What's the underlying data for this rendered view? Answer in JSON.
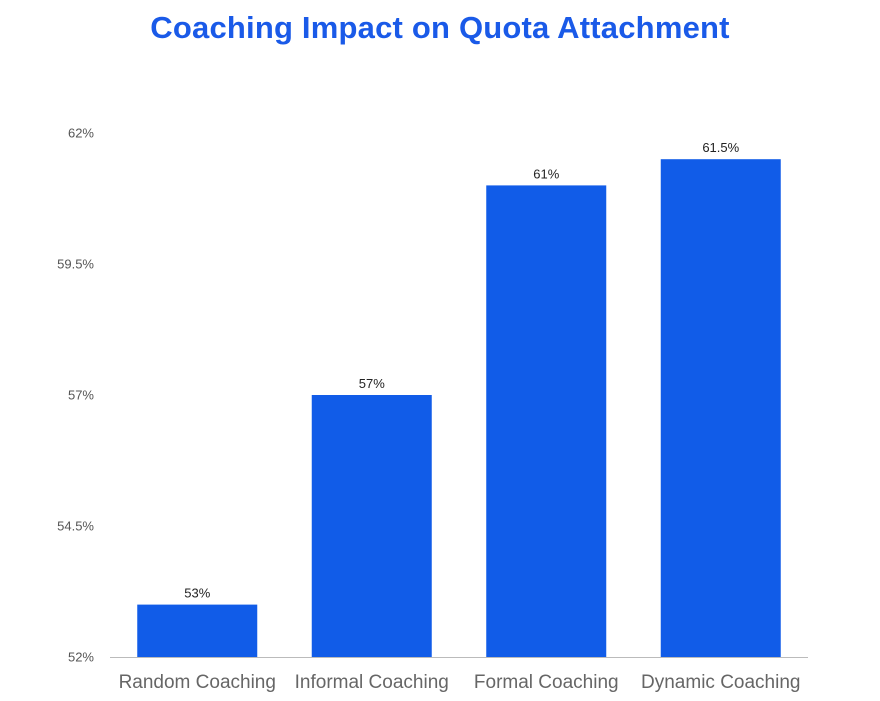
{
  "chart_data": {
    "type": "bar",
    "title": "Coaching Impact on Quota Attachment",
    "xlabel": "",
    "ylabel": "",
    "categories": [
      "Random Coaching",
      "Informal Coaching",
      "Formal Coaching",
      "Dynamic Coaching"
    ],
    "values": [
      53,
      57,
      61,
      61.5
    ],
    "value_labels": [
      "53%",
      "57%",
      "61%",
      "61.5%"
    ],
    "ylim": [
      52,
      62
    ],
    "yticks": [
      52,
      54.5,
      57,
      59.5,
      62
    ],
    "ytick_labels": [
      "52%",
      "54.5%",
      "57%",
      "59.5%",
      "62%"
    ],
    "grid": false,
    "legend": "none",
    "colors": {
      "bar": "#115ce8",
      "title": "#1a5ae8",
      "axis": "#bbbbbb"
    }
  }
}
